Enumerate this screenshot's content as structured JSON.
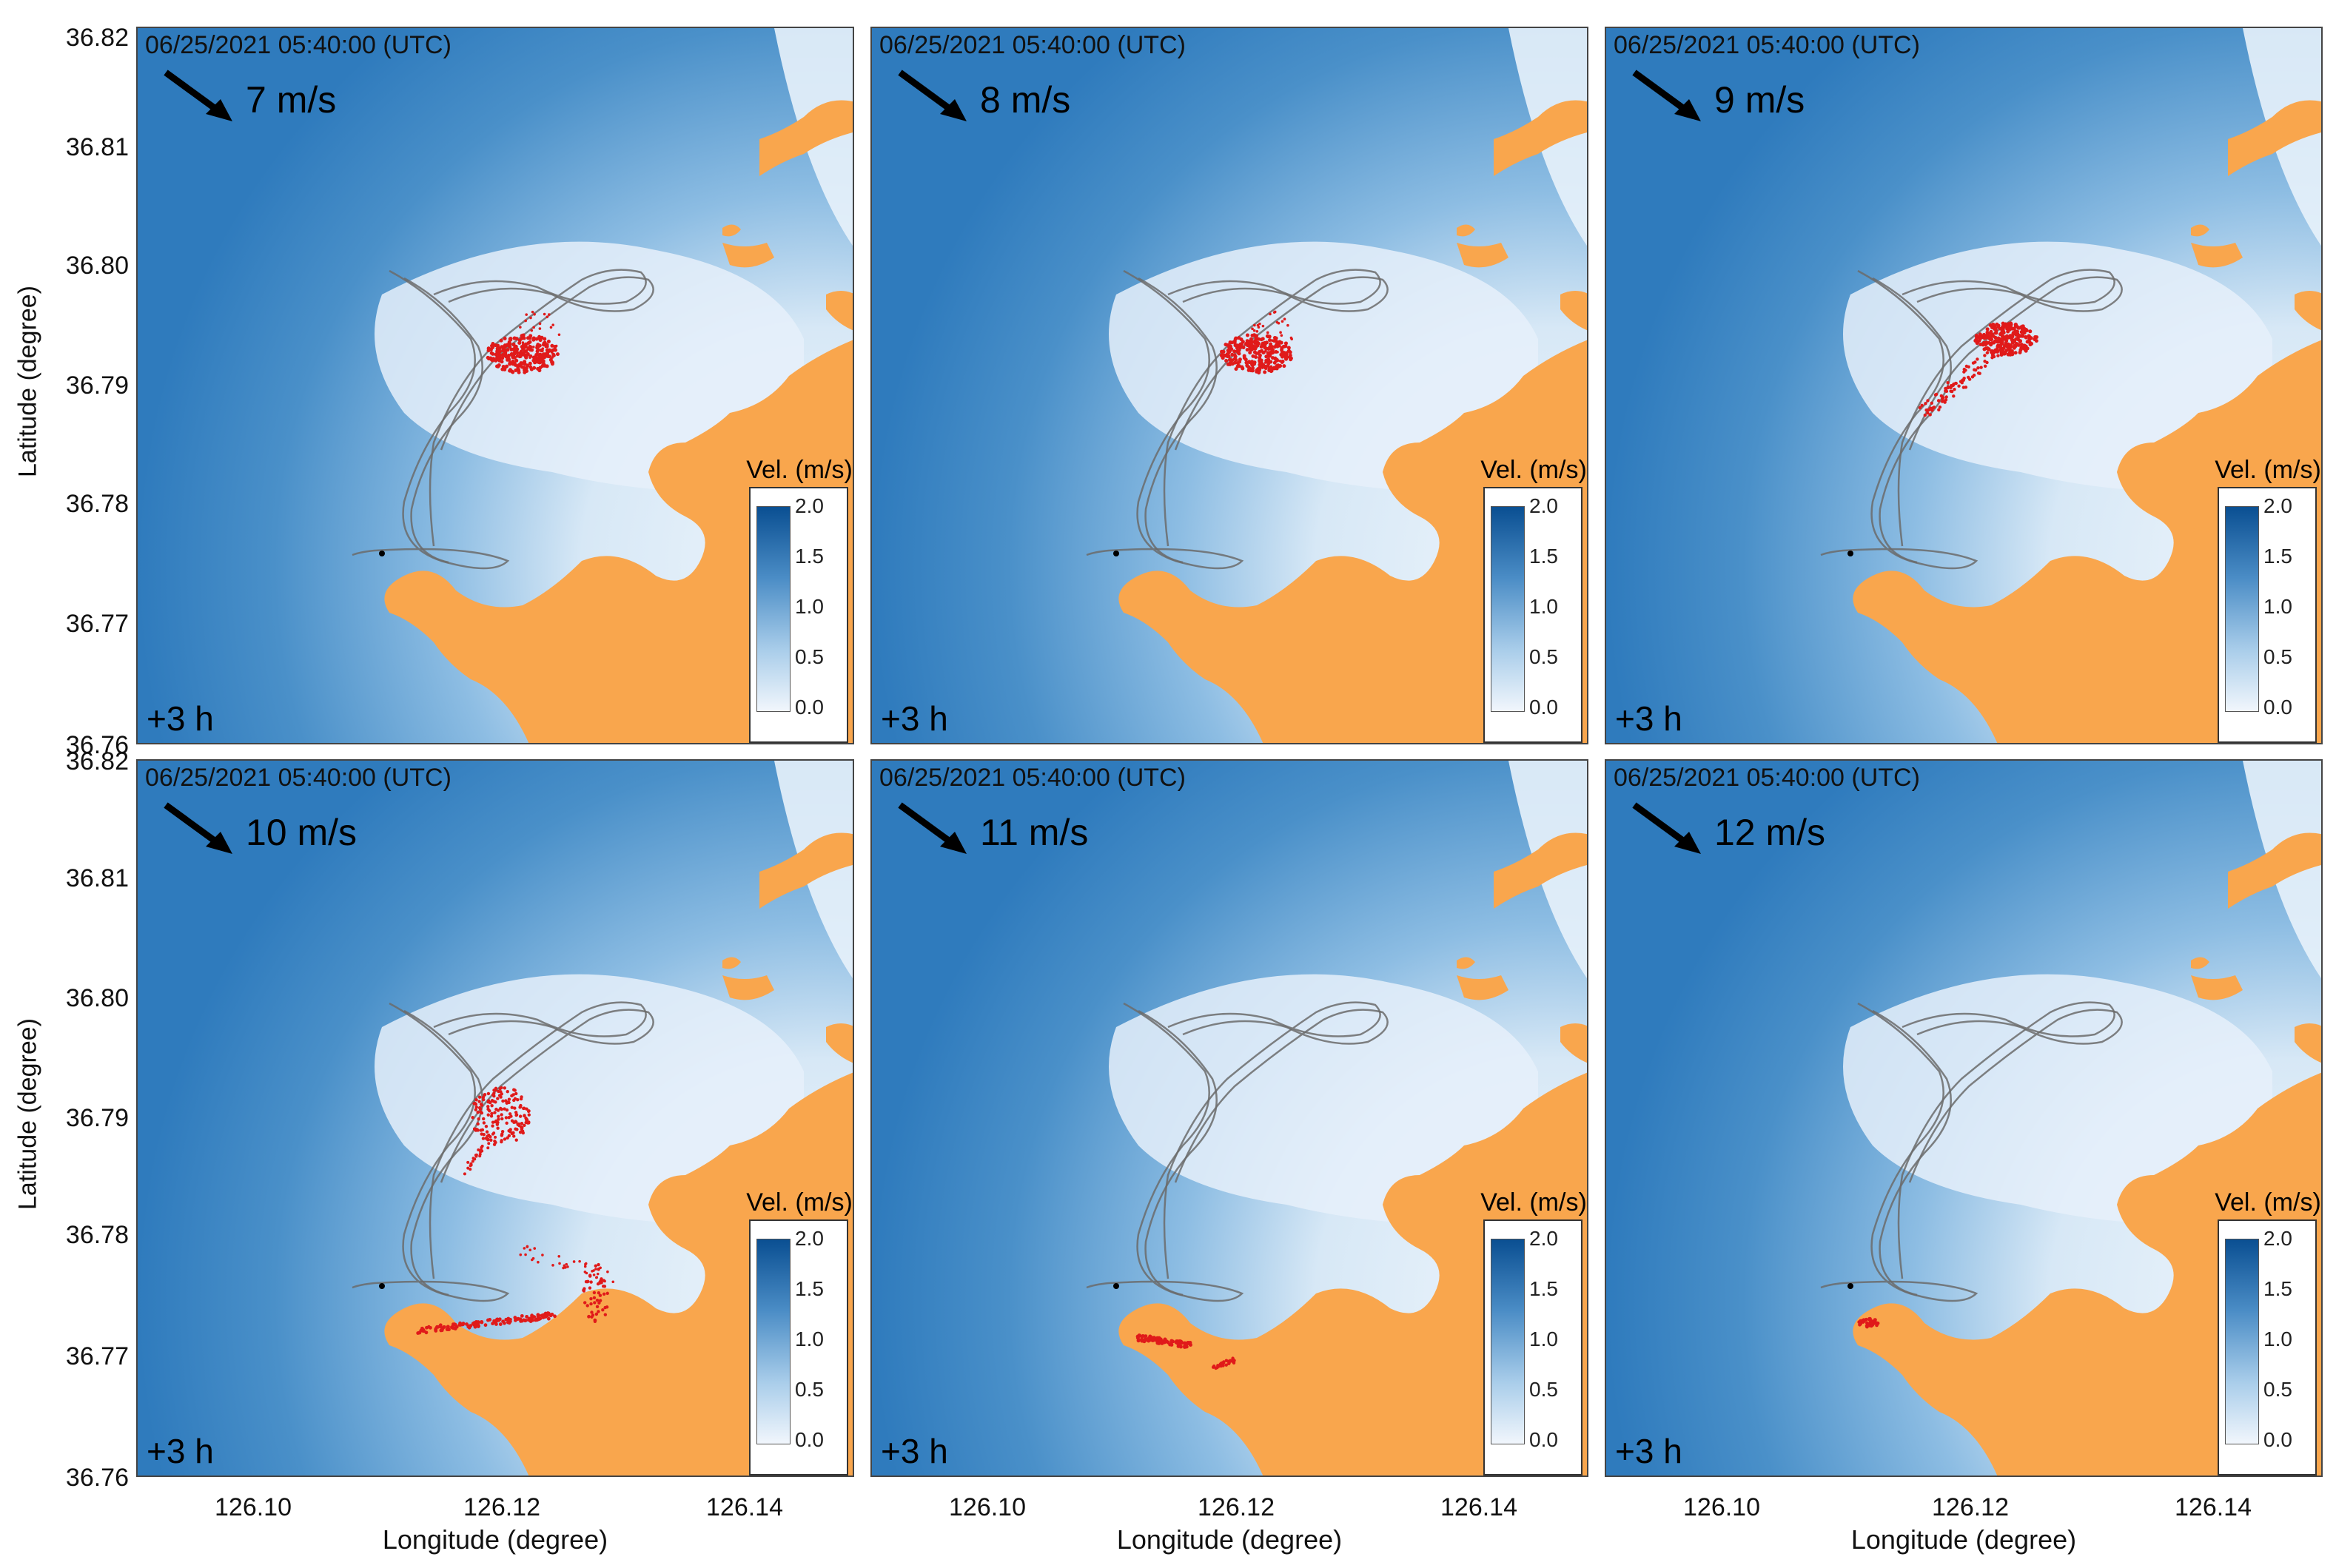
{
  "colors": {
    "land": "#f9a64d",
    "water_deep": "#2f7bbd",
    "water_light": "#eef5fc",
    "particle": "#e01a1a",
    "track": "#6b6b6b"
  },
  "panels": [
    {
      "timestamp": "06/25/2021 05:40:00 (UTC)",
      "wind_speed": "7 m/s",
      "elapsed": "+3 h",
      "legend_title": "Vel. (m/s)",
      "particle_pattern": "cluster-north"
    },
    {
      "timestamp": "06/25/2021 05:40:00 (UTC)",
      "wind_speed": "8 m/s",
      "elapsed": "+3 h",
      "legend_title": "Vel. (m/s)",
      "particle_pattern": "cluster-north"
    },
    {
      "timestamp": "06/25/2021 05:40:00 (UTC)",
      "wind_speed": "9 m/s",
      "elapsed": "+3 h",
      "legend_title": "Vel. (m/s)",
      "particle_pattern": "cluster-tail"
    },
    {
      "timestamp": "06/25/2021 05:40:00 (UTC)",
      "wind_speed": "10 m/s",
      "elapsed": "+3 h",
      "legend_title": "Vel. (m/s)",
      "particle_pattern": "split-shore"
    },
    {
      "timestamp": "06/25/2021 05:40:00 (UTC)",
      "wind_speed": "11 m/s",
      "elapsed": "+3 h",
      "legend_title": "Vel. (m/s)",
      "particle_pattern": "shore"
    },
    {
      "timestamp": "06/25/2021 05:40:00 (UTC)",
      "wind_speed": "12 m/s",
      "elapsed": "+3 h",
      "legend_title": "Vel. (m/s)",
      "particle_pattern": "shore-small"
    }
  ],
  "legend_ticks": [
    "2.0",
    "1.5",
    "1.0",
    "0.5",
    "0.0"
  ],
  "y_ticks": [
    "36.82",
    "36.81",
    "36.80",
    "36.79",
    "36.78",
    "36.77",
    "36.76"
  ],
  "x_ticks": [
    "126.10",
    "126.12",
    "126.14"
  ],
  "y_axis_label": "Latitude (degree)",
  "x_axis_label": "Longitude (degree)"
}
